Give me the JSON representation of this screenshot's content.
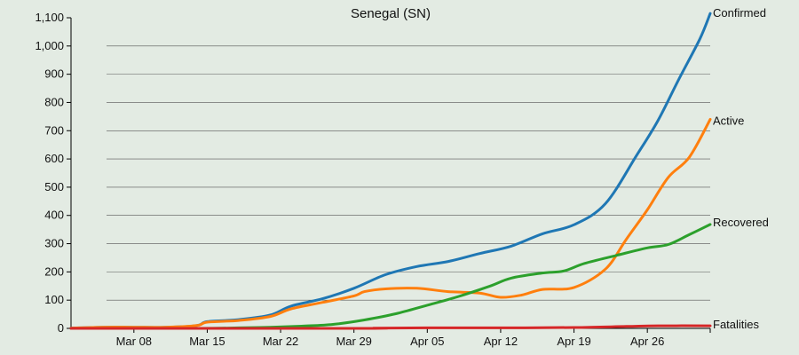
{
  "chart_data": {
    "type": "line",
    "title": "Senegal (SN)",
    "xlabel": "",
    "ylabel": "",
    "x_start": "2020-03-02",
    "x_end": "2020-05-02",
    "x_ticks": [
      "Mar 08",
      "Mar 15",
      "Mar 22",
      "Mar 29",
      "Apr 05",
      "Apr 12",
      "Apr 19",
      "Apr 26"
    ],
    "ylim": [
      0,
      1100
    ],
    "y_ticks": [
      "0",
      "100",
      "200",
      "300",
      "400",
      "500",
      "600",
      "700",
      "800",
      "900",
      "1,000",
      "1,100"
    ],
    "grid": true,
    "legend": "labels at line ends (right)",
    "series": [
      {
        "name": "Confirmed",
        "color": "#1f77b4",
        "points": [
          [
            "2020-03-02",
            1
          ],
          [
            "2020-03-05",
            4
          ],
          [
            "2020-03-08",
            4
          ],
          [
            "2020-03-11",
            4
          ],
          [
            "2020-03-14",
            10
          ],
          [
            "2020-03-15",
            24
          ],
          [
            "2020-03-18",
            31
          ],
          [
            "2020-03-21",
            47
          ],
          [
            "2020-03-23",
            79
          ],
          [
            "2020-03-26",
            105
          ],
          [
            "2020-03-29",
            142
          ],
          [
            "2020-04-01",
            190
          ],
          [
            "2020-04-04",
            219
          ],
          [
            "2020-04-07",
            237
          ],
          [
            "2020-04-10",
            265
          ],
          [
            "2020-04-13",
            291
          ],
          [
            "2020-04-16",
            335
          ],
          [
            "2020-04-19",
            367
          ],
          [
            "2020-04-22",
            442
          ],
          [
            "2020-04-25",
            614
          ],
          [
            "2020-04-27",
            735
          ],
          [
            "2020-04-29",
            882
          ],
          [
            "2020-05-01",
            1024
          ],
          [
            "2020-05-02",
            1115
          ]
        ]
      },
      {
        "name": "Active",
        "color": "#ff7f0e",
        "points": [
          [
            "2020-03-02",
            1
          ],
          [
            "2020-03-05",
            4
          ],
          [
            "2020-03-08",
            4
          ],
          [
            "2020-03-11",
            4
          ],
          [
            "2020-03-14",
            10
          ],
          [
            "2020-03-15",
            22
          ],
          [
            "2020-03-18",
            28
          ],
          [
            "2020-03-21",
            42
          ],
          [
            "2020-03-23",
            69
          ],
          [
            "2020-03-26",
            92
          ],
          [
            "2020-03-29",
            115
          ],
          [
            "2020-03-30",
            130
          ],
          [
            "2020-04-01",
            140
          ],
          [
            "2020-04-04",
            142
          ],
          [
            "2020-04-07",
            130
          ],
          [
            "2020-04-10",
            125
          ],
          [
            "2020-04-12",
            110
          ],
          [
            "2020-04-14",
            118
          ],
          [
            "2020-04-16",
            138
          ],
          [
            "2020-04-19",
            145
          ],
          [
            "2020-04-22",
            210
          ],
          [
            "2020-04-24",
            316
          ],
          [
            "2020-04-26",
            420
          ],
          [
            "2020-04-28",
            535
          ],
          [
            "2020-04-30",
            606
          ],
          [
            "2020-05-02",
            740
          ]
        ]
      },
      {
        "name": "Recovered",
        "color": "#2ca02c",
        "points": [
          [
            "2020-03-02",
            0
          ],
          [
            "2020-03-14",
            0
          ],
          [
            "2020-03-18",
            2
          ],
          [
            "2020-03-21",
            4
          ],
          [
            "2020-03-24",
            8
          ],
          [
            "2020-03-27",
            14
          ],
          [
            "2020-03-30",
            30
          ],
          [
            "2020-04-02",
            52
          ],
          [
            "2020-04-05",
            82
          ],
          [
            "2020-04-08",
            113
          ],
          [
            "2020-04-11",
            150
          ],
          [
            "2020-04-13",
            178
          ],
          [
            "2020-04-16",
            196
          ],
          [
            "2020-04-18",
            203
          ],
          [
            "2020-04-20",
            230
          ],
          [
            "2020-04-23",
            258
          ],
          [
            "2020-04-26",
            285
          ],
          [
            "2020-04-28",
            297
          ],
          [
            "2020-04-30",
            332
          ],
          [
            "2020-05-02",
            368
          ]
        ]
      },
      {
        "name": "Fatalities",
        "color": "#d62728",
        "points": [
          [
            "2020-03-02",
            0
          ],
          [
            "2020-03-30",
            0
          ],
          [
            "2020-03-31",
            1
          ],
          [
            "2020-04-05",
            2
          ],
          [
            "2020-04-12",
            2
          ],
          [
            "2020-04-19",
            3
          ],
          [
            "2020-04-24",
            7
          ],
          [
            "2020-04-27",
            9
          ],
          [
            "2020-05-02",
            9
          ]
        ]
      }
    ]
  }
}
